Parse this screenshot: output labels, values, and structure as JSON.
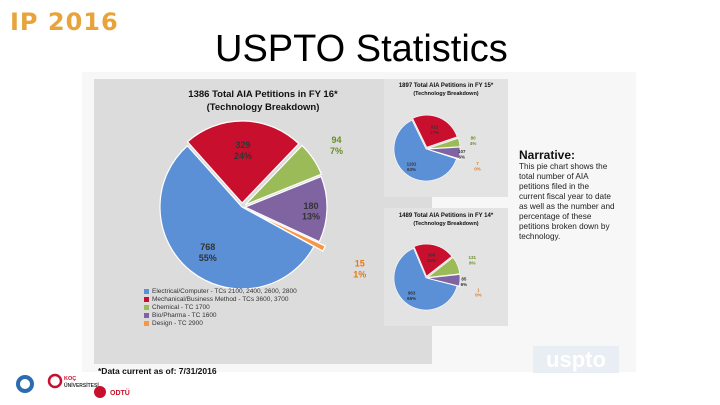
{
  "header": {
    "brand": "IP 2016",
    "title": "USPTO Statistics"
  },
  "main_chart": {
    "title_line1": "1386 Total AIA Petitions in FY 16*",
    "title_line2": "(Technology Breakdown)"
  },
  "chart_data": [
    {
      "type": "pie",
      "title": "1386 Total AIA Petitions in FY 16*",
      "subtitle": "(Technology Breakdown)",
      "categories": [
        "Electrical/Computer - TCs 2100, 2400, 2600, 2800",
        "Mechanical/Business Method - TCs 3600, 3700",
        "Chemical - TC 1700",
        "Bio/Pharma - TC 1600",
        "Design - TC 2900"
      ],
      "values": [
        768,
        329,
        94,
        180,
        15
      ],
      "percent_labels": [
        "55%",
        "24%",
        "7%",
        "13%",
        "1%"
      ],
      "colors": [
        "#5b8fd6",
        "#c8102e",
        "#9bbb59",
        "#8064a2",
        "#f79646"
      ]
    },
    {
      "type": "pie",
      "title": "1897 Total AIA Petitions in FY 15*",
      "subtitle": "(Technology Breakdown)",
      "values": [
        1191,
        512,
        80,
        107,
        7
      ],
      "percent_labels": [
        "63%",
        "27%",
        "4%",
        "6%",
        "0%"
      ]
    },
    {
      "type": "pie",
      "title": "1489 Total AIA Petitions in FY 14*",
      "subtitle": "(Technology Breakdown)",
      "values": [
        963,
        309,
        131,
        85,
        1
      ],
      "percent_labels": [
        "65%",
        "21%",
        "9%",
        "6%",
        "0%"
      ]
    }
  ],
  "legend": [
    {
      "label": "Electrical/Computer - TCs 2100, 2400, 2600, 2800",
      "color": "#5b8fd6"
    },
    {
      "label": "Mechanical/Business Method - TCs 3600, 3700",
      "color": "#c8102e"
    },
    {
      "label": "Chemical - TC 1700",
      "color": "#9bbb59"
    },
    {
      "label": "Bio/Pharma - TC 1600",
      "color": "#8064a2"
    },
    {
      "label": "Design - TC 2900",
      "color": "#f79646"
    }
  ],
  "fy15": {
    "title_line1": "1897 Total AIA Petitions in FY 15*",
    "title_line2": "(Technology Breakdown)"
  },
  "fy14": {
    "title_line1": "1489 Total AIA Petitions in FY 14*",
    "title_line2": "(Technology Breakdown)"
  },
  "narrative": {
    "heading": "Narrative:",
    "body": "This pie chart shows the total number of AIA petitions filed in the current fiscal year to date as well as the number and percentage of these petitions broken down by technology."
  },
  "footnote": "*Data current as of: 7/31/2016",
  "watermark": "uspto",
  "logos": {
    "koc_line1": "KOÇ",
    "koc_line2": "ÜNİVERSİTESİ",
    "odtu": "ODTÜ"
  }
}
